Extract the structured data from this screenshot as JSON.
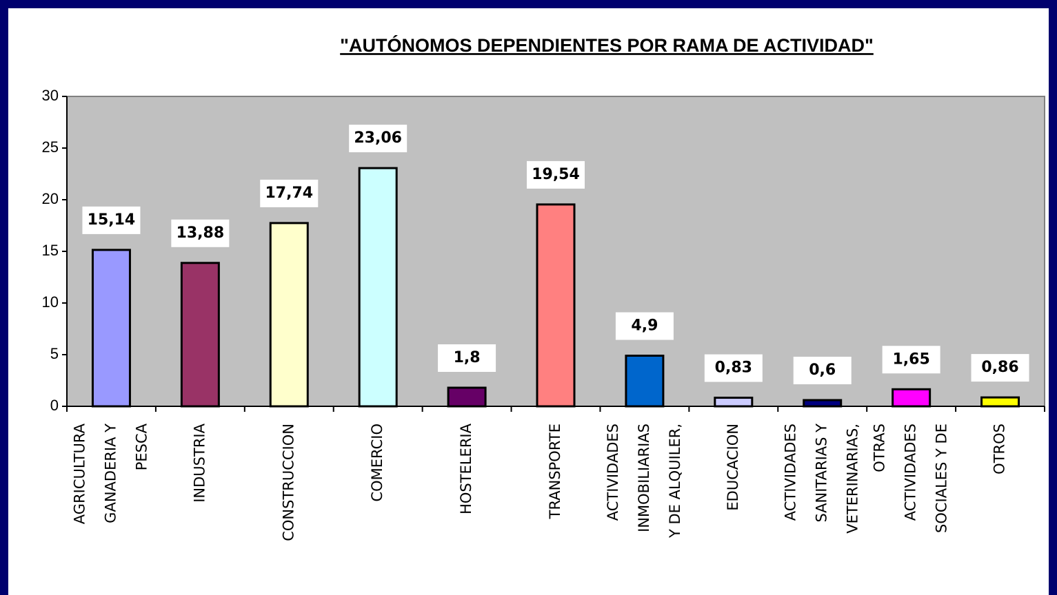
{
  "chart_data": {
    "type": "bar",
    "title": "\"AUTÓNOMOS DEPENDIENTES POR RAMA DE ACTIVIDAD\"",
    "categories": [
      [
        "AGRICULTURA",
        "GANADERIA Y",
        "PESCA"
      ],
      [
        "INDUSTRIA"
      ],
      [
        "CONSTRUCCION"
      ],
      [
        "COMERCIO"
      ],
      [
        "HOSTELERIA"
      ],
      [
        "TRANSPORTE"
      ],
      [
        "ACTIVIDADES",
        "INMOBILIARIAS",
        "Y DE ALQUILER,"
      ],
      [
        "EDUCACION"
      ],
      [
        "ACTIVIDADES",
        "SANITARIAS Y",
        "VETERINARIAS,"
      ],
      [
        "OTRAS",
        "ACTIVIDADES",
        "SOCIALES Y DE"
      ],
      [
        "OTROS"
      ]
    ],
    "values": [
      15.14,
      13.88,
      17.74,
      23.06,
      1.8,
      19.54,
      4.9,
      0.83,
      0.6,
      1.65,
      0.86
    ],
    "value_labels": [
      "15,14",
      "13,88",
      "17,74",
      "23,06",
      "1,8",
      "19,54",
      "4,9",
      "0,83",
      "0,6",
      "1,65",
      "0,86"
    ],
    "colors": [
      "#9999ff",
      "#993366",
      "#ffffcc",
      "#ccffff",
      "#660066",
      "#ff8080",
      "#0066cc",
      "#ccccff",
      "#000080",
      "#ff00ff",
      "#ffff00"
    ],
    "ylim": [
      0,
      30
    ],
    "yticks": [
      0,
      5,
      10,
      15,
      20,
      25,
      30
    ],
    "grid": false
  }
}
